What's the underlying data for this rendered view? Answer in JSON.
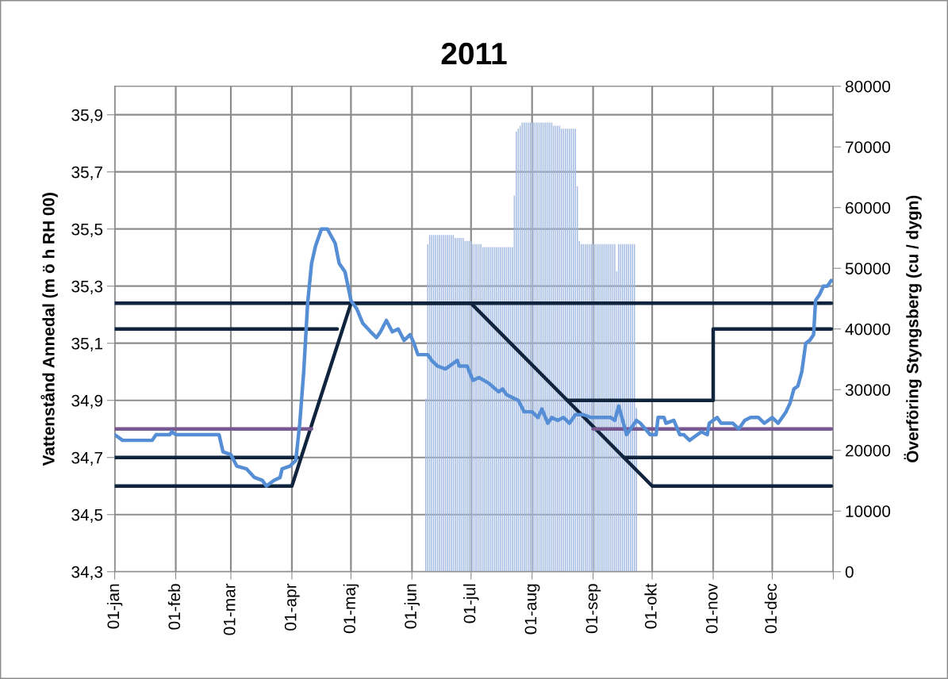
{
  "chart_data": {
    "type": "line",
    "title": "2011",
    "ylabel": "Vattenstånd Annedal (m ö h RH 00)",
    "y2label": "Överföring Styngsberg (cu / dygn)",
    "xlim": [
      "2011-01-01",
      "2012-01-01"
    ],
    "xticks": [
      {
        "value": "2011-01-01",
        "label": "01-jan"
      },
      {
        "value": "2011-02-01",
        "label": "01-feb"
      },
      {
        "value": "2011-03-01",
        "label": "01-mar"
      },
      {
        "value": "2011-04-01",
        "label": "01-apr"
      },
      {
        "value": "2011-05-01",
        "label": "01-maj"
      },
      {
        "value": "2011-06-01",
        "label": "01-jun"
      },
      {
        "value": "2011-07-01",
        "label": "01-jul"
      },
      {
        "value": "2011-08-01",
        "label": "01-aug"
      },
      {
        "value": "2011-09-01",
        "label": "01-sep"
      },
      {
        "value": "2011-10-01",
        "label": "01-okt"
      },
      {
        "value": "2011-11-01",
        "label": "01-nov"
      },
      {
        "value": "2011-12-01",
        "label": "01-dec"
      },
      {
        "value": "2012-01-01",
        "label": null
      }
    ],
    "ylim": [
      34.3,
      36.0
    ],
    "yticks": [
      {
        "value": 34.3,
        "label": "34,3"
      },
      {
        "value": 34.5,
        "label": "34,5"
      },
      {
        "value": 34.7,
        "label": "34,7"
      },
      {
        "value": 34.9,
        "label": "34,9"
      },
      {
        "value": 35.1,
        "label": "35,1"
      },
      {
        "value": 35.3,
        "label": "35,3"
      },
      {
        "value": 35.5,
        "label": "35,5"
      },
      {
        "value": 35.7,
        "label": "35,7"
      },
      {
        "value": 35.9,
        "label": "35,9"
      }
    ],
    "y2lim": [
      0,
      80000
    ],
    "y2ticks": [
      0,
      10000,
      20000,
      30000,
      40000,
      50000,
      60000,
      70000,
      80000
    ],
    "grid": true,
    "marker": "none",
    "line_style": "solid",
    "series": [
      {
        "type": "bar",
        "axis": "y2",
        "color": "#a4bbe3",
        "x": [
          "2011-06-08",
          "2011-06-09",
          "2011-06-10",
          "2011-06-11",
          "2011-06-12",
          "2011-06-13",
          "2011-06-14",
          "2011-06-15",
          "2011-06-16",
          "2011-06-17",
          "2011-06-18",
          "2011-06-19",
          "2011-06-20",
          "2011-06-21",
          "2011-06-22",
          "2011-06-23",
          "2011-06-24",
          "2011-06-25",
          "2011-06-26",
          "2011-06-27",
          "2011-06-28",
          "2011-06-29",
          "2011-06-30",
          "2011-07-01",
          "2011-07-02",
          "2011-07-03",
          "2011-07-04",
          "2011-07-05",
          "2011-07-06",
          "2011-07-07",
          "2011-07-08",
          "2011-07-09",
          "2011-07-10",
          "2011-07-11",
          "2011-07-12",
          "2011-07-13",
          "2011-07-14",
          "2011-07-15",
          "2011-07-16",
          "2011-07-17",
          "2011-07-18",
          "2011-07-19",
          "2011-07-20",
          "2011-07-21",
          "2011-07-22",
          "2011-07-23",
          "2011-07-24",
          "2011-07-25",
          "2011-07-26",
          "2011-07-27",
          "2011-07-28",
          "2011-07-29",
          "2011-07-30",
          "2011-07-31",
          "2011-08-01",
          "2011-08-02",
          "2011-08-03",
          "2011-08-04",
          "2011-08-05",
          "2011-08-06",
          "2011-08-07",
          "2011-08-08",
          "2011-08-09",
          "2011-08-10",
          "2011-08-11",
          "2011-08-12",
          "2011-08-13",
          "2011-08-14",
          "2011-08-15",
          "2011-08-16",
          "2011-08-17",
          "2011-08-18",
          "2011-08-19",
          "2011-08-20",
          "2011-08-21",
          "2011-08-22",
          "2011-08-23",
          "2011-08-24",
          "2011-08-25",
          "2011-08-26",
          "2011-08-27",
          "2011-08-28",
          "2011-08-29",
          "2011-08-30",
          "2011-08-31",
          "2011-09-01",
          "2011-09-02",
          "2011-09-03",
          "2011-09-04",
          "2011-09-05",
          "2011-09-06",
          "2011-09-07",
          "2011-09-08",
          "2011-09-09",
          "2011-09-10",
          "2011-09-11",
          "2011-09-12",
          "2011-09-13",
          "2011-09-14",
          "2011-09-15",
          "2011-09-16",
          "2011-09-17",
          "2011-09-18",
          "2011-09-19",
          "2011-09-20",
          "2011-09-21",
          "2011-09-22",
          "2011-09-23"
        ],
        "values": [
          28500,
          54000,
          55500,
          55500,
          55500,
          55500,
          55500,
          55500,
          55500,
          55500,
          55500,
          55500,
          55500,
          55500,
          55500,
          55000,
          55000,
          55000,
          55000,
          55000,
          54500,
          54500,
          54500,
          54500,
          54000,
          54000,
          54000,
          54000,
          54000,
          53500,
          53500,
          53500,
          53500,
          53500,
          53500,
          53500,
          53500,
          53500,
          53500,
          53500,
          53500,
          53500,
          53500,
          53500,
          53500,
          62000,
          72500,
          73000,
          73500,
          74000,
          74000,
          74000,
          74000,
          74000,
          74000,
          74000,
          74000,
          74000,
          74000,
          74000,
          74000,
          74000,
          74000,
          74000,
          74000,
          73500,
          73500,
          73500,
          73500,
          73000,
          73000,
          73000,
          73000,
          73000,
          73000,
          73000,
          73000,
          63500,
          54500,
          54000,
          54000,
          54000,
          54000,
          54000,
          54000,
          54000,
          54000,
          54000,
          54000,
          54000,
          54000,
          54000,
          54000,
          54000,
          54000,
          54000,
          54000,
          49500,
          54000,
          54000,
          54000,
          54000,
          54000,
          54000,
          54000,
          54000,
          54000,
          27000
        ]
      },
      {
        "color": "#10243e",
        "x": [
          "2011-01-01",
          "2011-04-01",
          "2011-05-01",
          "2011-07-01",
          "2011-10-01",
          "2011-12-31"
        ],
        "values": [
          34.6,
          34.6,
          35.24,
          35.24,
          34.6,
          34.6
        ]
      },
      {
        "color": "#10243e",
        "x": [
          "2011-01-01",
          "2011-12-31"
        ],
        "values": [
          35.24,
          35.24
        ]
      },
      {
        "color": "#10243e",
        "x": [
          "2011-01-01",
          "2011-04-24"
        ],
        "values": [
          35.15,
          35.15
        ]
      },
      {
        "color": "#10243e",
        "x": [
          "2011-08-19",
          "2011-11-01",
          "2011-11-01",
          "2011-12-31"
        ],
        "values": [
          34.9,
          34.9,
          35.15,
          35.15
        ]
      },
      {
        "color": "#10243e",
        "x": [
          "2011-01-01",
          "2011-04-04"
        ],
        "values": [
          34.7,
          34.7
        ]
      },
      {
        "color": "#10243e",
        "x": [
          "2011-09-17",
          "2011-12-31"
        ],
        "values": [
          34.7,
          34.7
        ]
      },
      {
        "color": "#76578f",
        "x": [
          "2011-01-01",
          "2011-04-11"
        ],
        "values": [
          34.8,
          34.8
        ]
      },
      {
        "color": "#76578f",
        "x": [
          "2011-09-01",
          "2011-12-31"
        ],
        "values": [
          34.8,
          34.8
        ]
      },
      {
        "color": "#558ed5",
        "x": [
          "2011-01-01",
          "2011-01-05",
          "2011-01-20",
          "2011-01-22",
          "2011-01-29",
          "2011-01-30",
          "2011-02-01",
          "2011-02-23",
          "2011-02-25",
          "2011-03-01",
          "2011-03-04",
          "2011-03-09",
          "2011-03-13",
          "2011-03-17",
          "2011-03-19",
          "2011-03-23",
          "2011-03-26",
          "2011-03-27",
          "2011-03-31",
          "2011-04-03",
          "2011-04-05",
          "2011-04-07",
          "2011-04-09",
          "2011-04-11",
          "2011-04-13",
          "2011-04-16",
          "2011-04-19",
          "2011-04-23",
          "2011-04-25",
          "2011-04-27",
          "2011-04-28",
          "2011-05-01",
          "2011-05-04",
          "2011-05-07",
          "2011-05-11",
          "2011-05-14",
          "2011-05-16",
          "2011-05-19",
          "2011-05-22",
          "2011-05-25",
          "2011-05-28",
          "2011-05-31",
          "2011-06-02",
          "2011-06-04",
          "2011-06-09",
          "2011-06-11",
          "2011-06-14",
          "2011-06-18",
          "2011-06-22",
          "2011-06-24",
          "2011-06-25",
          "2011-06-29",
          "2011-07-02",
          "2011-07-05",
          "2011-07-10",
          "2011-07-15",
          "2011-07-17",
          "2011-07-19",
          "2011-07-22",
          "2011-07-25",
          "2011-07-28",
          "2011-08-01",
          "2011-08-04",
          "2011-08-06",
          "2011-08-09",
          "2011-08-11",
          "2011-08-14",
          "2011-08-17",
          "2011-08-20",
          "2011-08-23",
          "2011-08-27",
          "2011-08-31",
          "2011-09-05",
          "2011-09-10",
          "2011-09-12",
          "2011-09-14",
          "2011-09-16",
          "2011-09-18",
          "2011-09-23",
          "2011-09-25",
          "2011-09-30",
          "2011-10-03",
          "2011-10-04",
          "2011-10-07",
          "2011-10-08",
          "2011-10-12",
          "2011-10-15",
          "2011-10-17",
          "2011-10-20",
          "2011-10-22",
          "2011-10-26",
          "2011-10-29",
          "2011-10-30",
          "2011-11-03",
          "2011-11-05",
          "2011-11-11",
          "2011-11-14",
          "2011-11-17",
          "2011-11-20",
          "2011-11-24",
          "2011-11-27",
          "2011-12-01",
          "2011-12-04",
          "2011-12-08",
          "2011-12-10",
          "2011-12-12",
          "2011-12-14",
          "2011-12-16",
          "2011-12-18",
          "2011-12-20",
          "2011-12-22",
          "2011-12-23",
          "2011-12-25",
          "2011-12-27",
          "2011-12-29",
          "2011-12-31"
        ],
        "values": [
          34.78,
          34.76,
          34.76,
          34.78,
          34.78,
          34.79,
          34.78,
          34.78,
          34.72,
          34.71,
          34.67,
          34.66,
          34.63,
          34.62,
          34.6,
          34.62,
          34.63,
          34.66,
          34.67,
          34.69,
          34.82,
          35.0,
          35.24,
          35.38,
          35.44,
          35.5,
          35.5,
          35.45,
          35.38,
          35.36,
          35.35,
          35.25,
          35.22,
          35.17,
          35.14,
          35.12,
          35.14,
          35.18,
          35.14,
          35.15,
          35.11,
          35.13,
          35.1,
          35.06,
          35.06,
          35.04,
          35.02,
          35.01,
          35.03,
          35.04,
          35.02,
          35.02,
          34.97,
          34.98,
          34.96,
          34.93,
          34.94,
          34.92,
          34.91,
          34.9,
          34.86,
          34.86,
          34.84,
          34.87,
          34.82,
          34.84,
          34.83,
          34.84,
          34.82,
          34.85,
          34.85,
          34.84,
          34.84,
          34.84,
          34.83,
          34.88,
          34.83,
          34.78,
          34.83,
          34.82,
          34.78,
          34.78,
          34.84,
          34.84,
          34.82,
          34.83,
          34.78,
          34.78,
          34.76,
          34.77,
          34.79,
          34.78,
          34.82,
          34.84,
          34.82,
          34.82,
          34.8,
          34.83,
          34.84,
          34.84,
          34.82,
          34.84,
          34.82,
          34.86,
          34.89,
          34.94,
          34.95,
          35.0,
          35.1,
          35.11,
          35.13,
          35.25,
          35.27,
          35.3,
          35.3,
          35.32
        ]
      }
    ]
  }
}
